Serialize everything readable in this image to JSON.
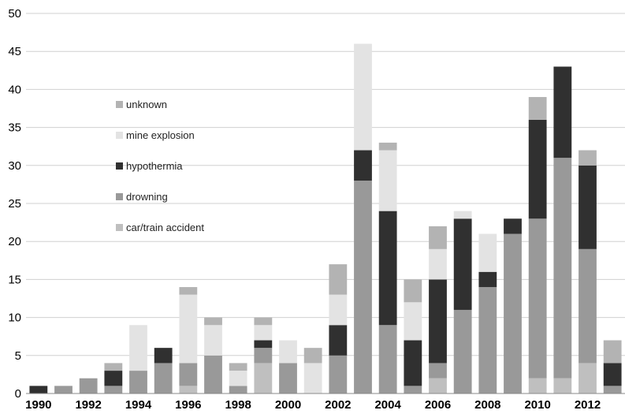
{
  "chart_data": {
    "type": "bar",
    "stacked": true,
    "grid": true,
    "legend_position": "left",
    "title": "",
    "xlabel": "",
    "ylabel": "",
    "ylim": [
      0,
      50
    ],
    "yticks": [
      "0",
      "5",
      "10",
      "15",
      "20",
      "25",
      "30",
      "35",
      "40",
      "45",
      "50"
    ],
    "categories": [
      "1990",
      "1991",
      "1992",
      "1993",
      "1994",
      "1995",
      "1996",
      "1997",
      "1998",
      "1999",
      "2000",
      "2001",
      "2002",
      "2003",
      "2004",
      "2005",
      "2006",
      "2007",
      "2008",
      "2009",
      "2010",
      "2011",
      "2012",
      "2013"
    ],
    "xtick_labels": [
      "1990",
      "",
      "1992",
      "",
      "1994",
      "",
      "1996",
      "",
      "1998",
      "",
      "2000",
      "",
      "2002",
      "",
      "2004",
      "",
      "2006",
      "",
      "2008",
      "",
      "2010",
      "",
      "2012",
      ""
    ],
    "series": [
      {
        "name": "car/train accident",
        "color": "#bfbfbf",
        "values": [
          0,
          0,
          0,
          0,
          0,
          0,
          1,
          0,
          0,
          4,
          0,
          0,
          0,
          0,
          0,
          0,
          2,
          0,
          0,
          0,
          2,
          2,
          4,
          0
        ]
      },
      {
        "name": "drowning",
        "color": "#999999",
        "values": [
          0,
          1,
          2,
          1,
          3,
          4,
          3,
          5,
          1,
          2,
          4,
          0,
          5,
          28,
          9,
          1,
          2,
          11,
          14,
          21,
          21,
          29,
          15,
          1
        ]
      },
      {
        "name": "hypothermia",
        "color": "#303030",
        "values": [
          1,
          0,
          0,
          2,
          0,
          2,
          0,
          0,
          0,
          1,
          0,
          0,
          4,
          4,
          15,
          6,
          11,
          12,
          2,
          2,
          13,
          12,
          11,
          3
        ]
      },
      {
        "name": "mine explosion",
        "color": "#e3e3e3",
        "values": [
          0,
          0,
          0,
          0,
          6,
          0,
          9,
          4,
          2,
          2,
          3,
          4,
          4,
          14,
          8,
          5,
          4,
          1,
          5,
          0,
          0,
          0,
          0,
          0
        ]
      },
      {
        "name": "unknown",
        "color": "#b3b3b3",
        "values": [
          0,
          0,
          0,
          1,
          0,
          0,
          1,
          1,
          1,
          1,
          0,
          2,
          4,
          0,
          1,
          3,
          3,
          0,
          0,
          0,
          3,
          0,
          2,
          3
        ]
      }
    ]
  }
}
